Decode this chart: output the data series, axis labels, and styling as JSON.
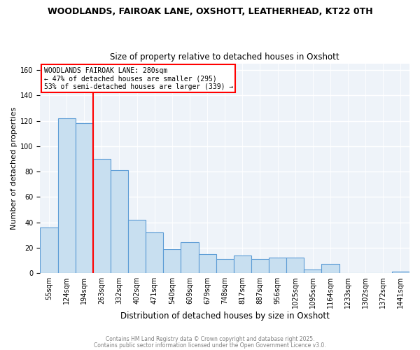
{
  "title": "WOODLANDS, FAIROAK LANE, OXSHOTT, LEATHERHEAD, KT22 0TH",
  "subtitle": "Size of property relative to detached houses in Oxshott",
  "xlabel": "Distribution of detached houses by size in Oxshott",
  "ylabel": "Number of detached properties",
  "bar_values": [
    36,
    122,
    118,
    90,
    81,
    42,
    32,
    19,
    24,
    15,
    11,
    14,
    11,
    12,
    12,
    3,
    7,
    0,
    0,
    0,
    1
  ],
  "bar_labels": [
    "55sqm",
    "124sqm",
    "194sqm",
    "263sqm",
    "332sqm",
    "402sqm",
    "471sqm",
    "540sqm",
    "609sqm",
    "679sqm",
    "748sqm",
    "817sqm",
    "887sqm",
    "956sqm",
    "1025sqm",
    "1095sqm",
    "1164sqm",
    "1233sqm",
    "1302sqm",
    "1372sqm",
    "1441sqm"
  ],
  "bar_color": "#c8dff0",
  "bar_edge_color": "#5b9bd5",
  "vline_x_index": 3,
  "vline_color": "red",
  "annotation_title": "WOODLANDS FAIROAK LANE: 280sqm",
  "annotation_line1": "← 47% of detached houses are smaller (295)",
  "annotation_line2": "53% of semi-detached houses are larger (339) →",
  "annotation_box_color": "white",
  "annotation_border_color": "red",
  "ylim": [
    0,
    165
  ],
  "yticks": [
    0,
    20,
    40,
    60,
    80,
    100,
    120,
    140,
    160
  ],
  "footer1": "Contains HM Land Registry data © Crown copyright and database right 2025.",
  "footer2": "Contains public sector information licensed under the Open Government Licence v3.0.",
  "bg_color": "#ffffff",
  "plot_bg_color": "#eef3f9",
  "grid_color": "#ffffff",
  "title_fontsize": 9,
  "subtitle_fontsize": 8.5,
  "ylabel_fontsize": 8,
  "xlabel_fontsize": 8.5,
  "tick_fontsize": 7,
  "annotation_fontsize": 7,
  "footer_fontsize": 5.5
}
